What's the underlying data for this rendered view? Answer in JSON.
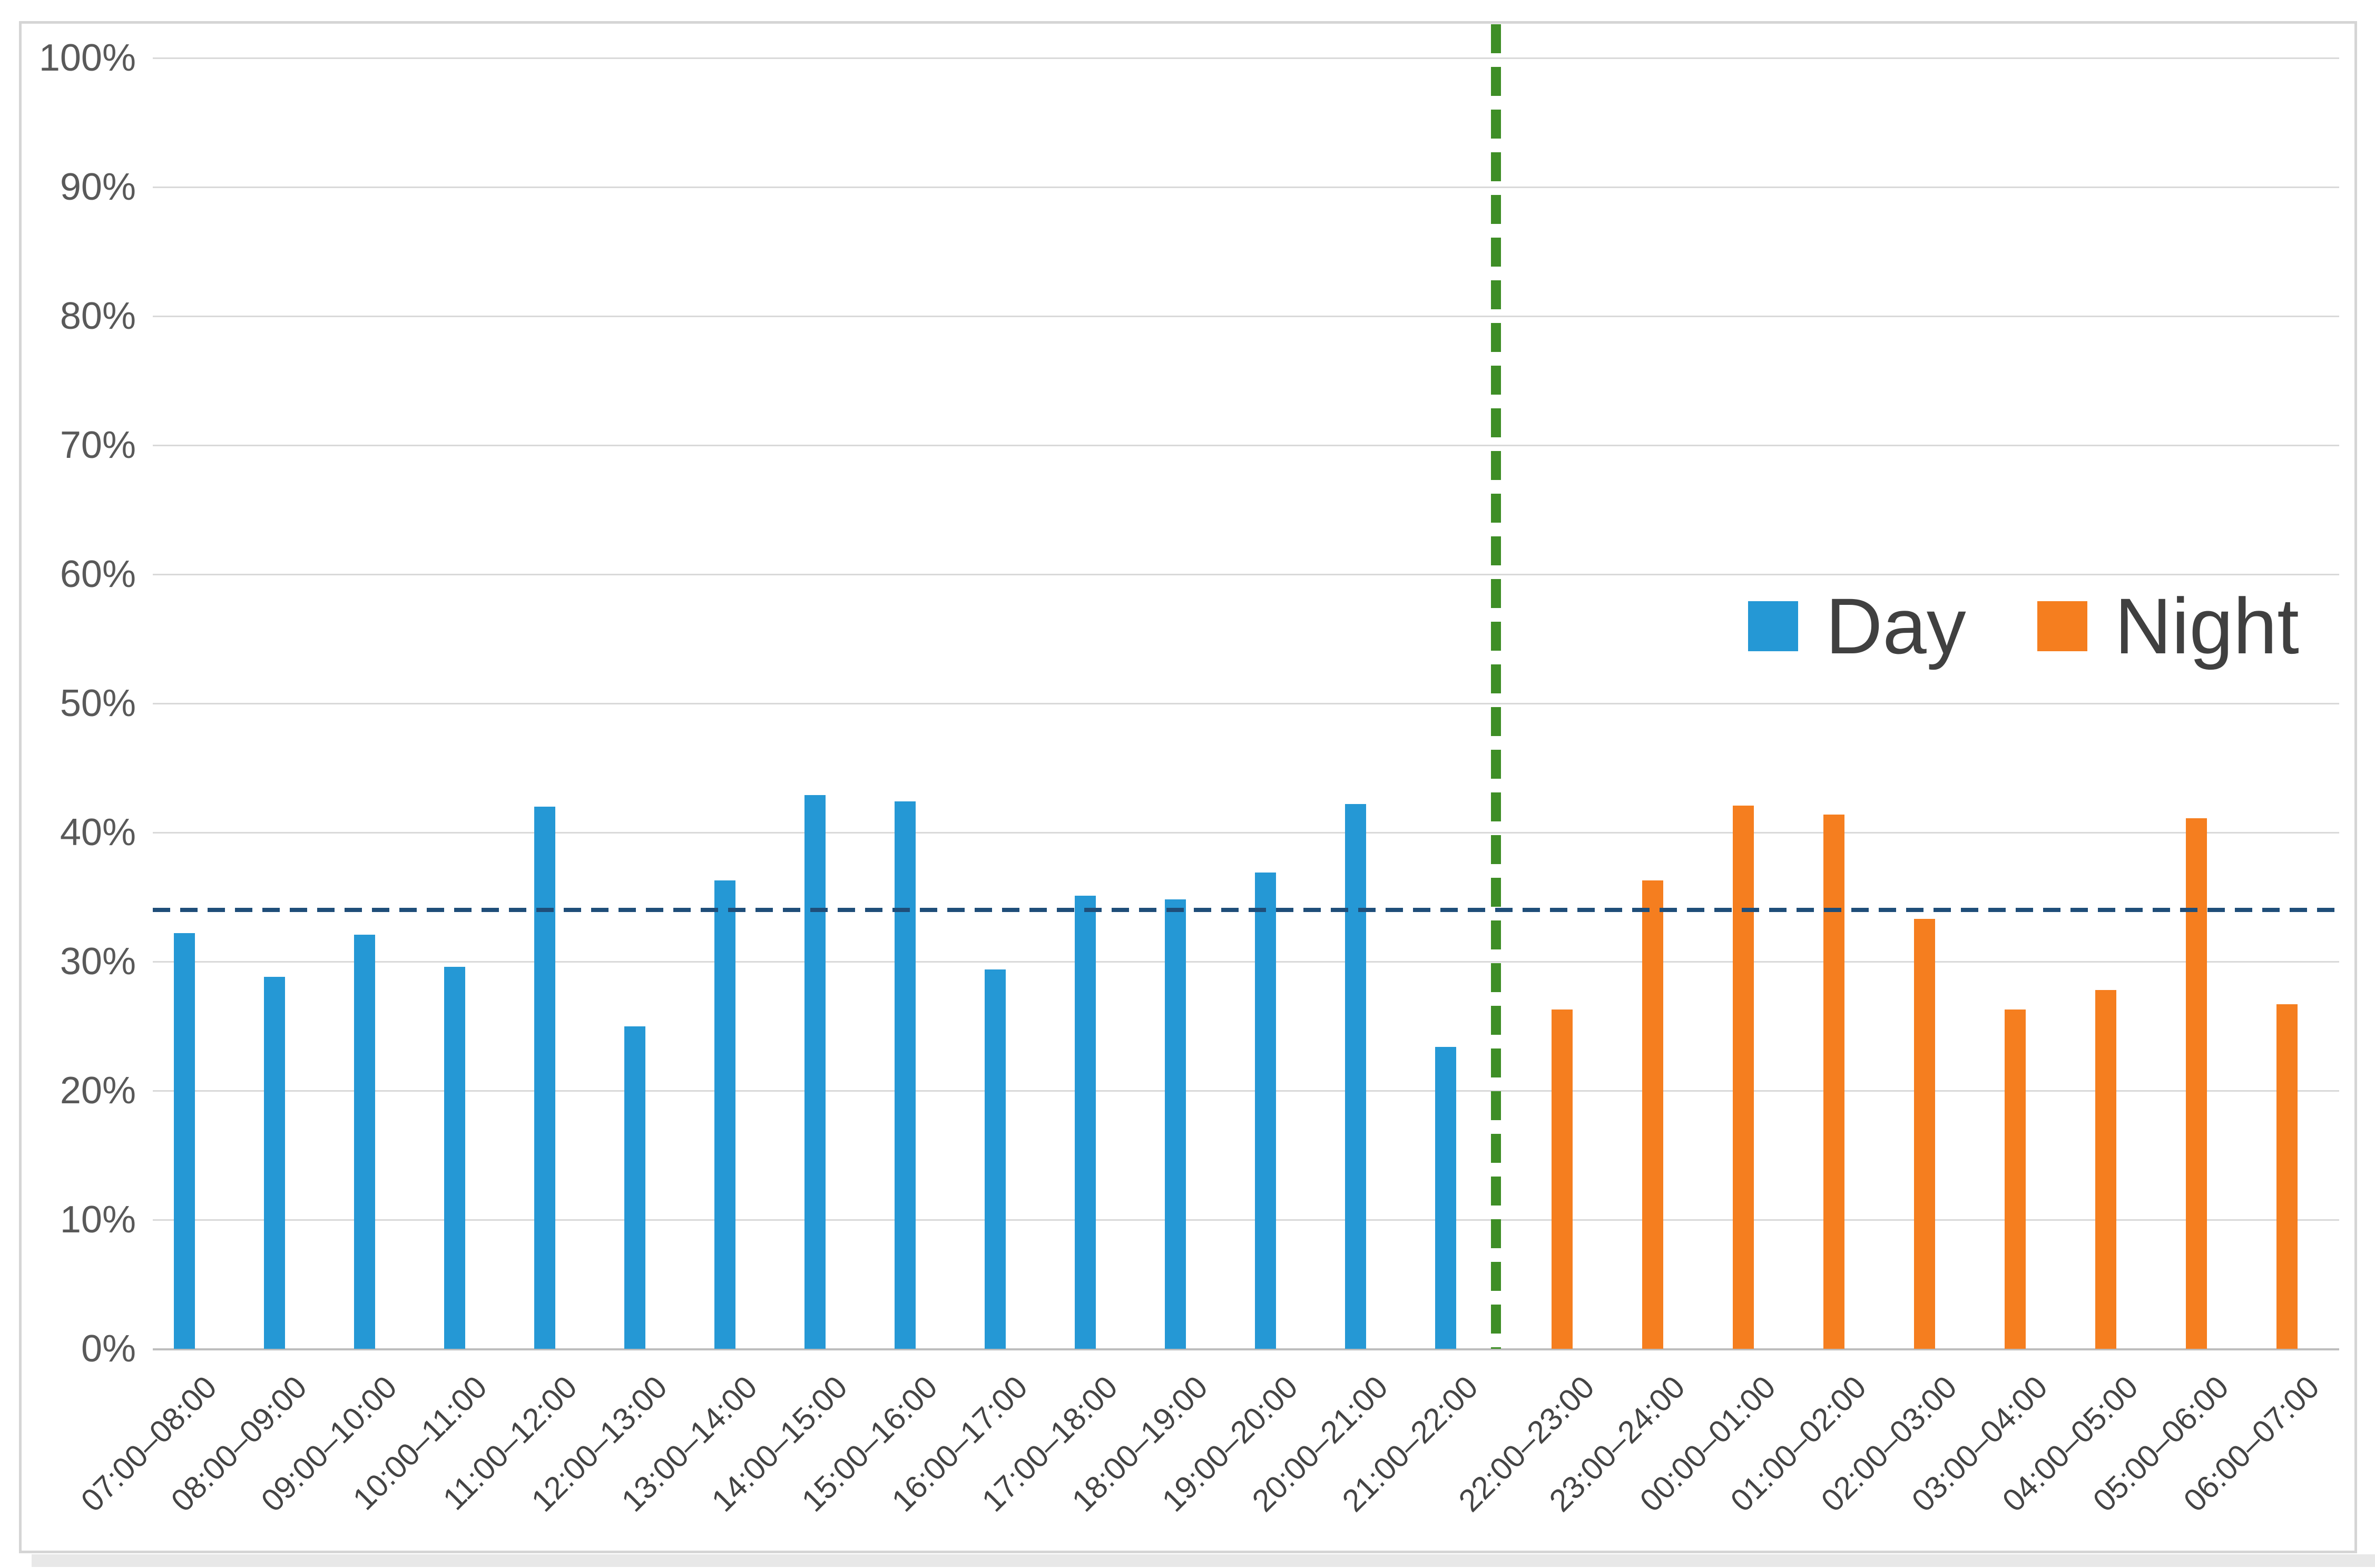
{
  "chart_data": {
    "type": "bar",
    "title": "",
    "categories": [
      "07:00–08:00",
      "08:00–09:00",
      "09:00–10:00",
      "10:00–11:00",
      "11:00–12:00",
      "12:00–13:00",
      "13:00–14:00",
      "14:00–15:00",
      "15:00–16:00",
      "16:00–17:00",
      "17:00–18:00",
      "18:00–19:00",
      "19:00–20:00",
      "20:00–21:00",
      "21:00–22:00",
      "22:00–23:00",
      "23:00–24:00",
      "00:00–01:00",
      "01:00–02:00",
      "02:00–03:00",
      "03:00–04:00",
      "04:00–05:00",
      "05:00–06:00",
      "06:00–07:00"
    ],
    "series": [
      {
        "name": "Day",
        "color": "#2598D5",
        "start_index": 0,
        "values": [
          32.2,
          28.8,
          32.1,
          29.6,
          42.0,
          25.0,
          36.3,
          42.9,
          42.4,
          29.4,
          35.1,
          34.8,
          36.9,
          42.2,
          23.4
        ]
      },
      {
        "name": "Night",
        "color": "#F57E1F",
        "start_index": 15,
        "values": [
          26.3,
          36.3,
          42.1,
          41.4,
          33.3,
          26.3,
          27.8,
          41.1,
          26.7
        ]
      }
    ],
    "y_axis": {
      "min": 0,
      "max": 100,
      "tick_step": 10,
      "ticks": [
        "0%",
        "10%",
        "20%",
        "30%",
        "40%",
        "50%",
        "60%",
        "70%",
        "80%",
        "90%",
        "100%"
      ]
    },
    "grid": "horizontal",
    "reference_lines": [
      {
        "name": "mean-line",
        "orientation": "horizontal",
        "value": 34,
        "style": "dashed",
        "color": "#1F4E79"
      },
      {
        "name": "day-night-divider",
        "orientation": "vertical",
        "position_between": [
          "21:00–22:00",
          "22:00–23:00"
        ],
        "style": "dashed",
        "color": "#3E8E26"
      }
    ],
    "legend": {
      "position": "middle-right",
      "entries": [
        {
          "label": "Day",
          "color": "#2598D5"
        },
        {
          "label": "Night",
          "color": "#F57E1F"
        }
      ]
    }
  }
}
